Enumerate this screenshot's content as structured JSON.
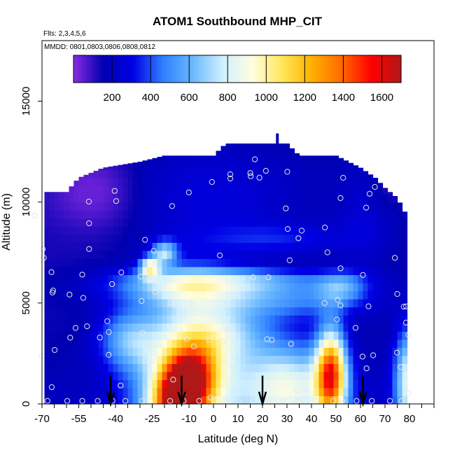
{
  "chart_data": {
    "type": "heatmap",
    "title": "ATOM1 Southbound MHP_CIT",
    "flights_label": "Flts: 2,3,4,5,6",
    "dates_label": "MMDD: 0801,0803,0806,0808,0812",
    "xlabel": "Latitude (deg N)",
    "ylabel": "Altitude (m)",
    "xlim": [
      -70,
      90
    ],
    "ylim": [
      0,
      18000
    ],
    "x_ticks": [
      "-70",
      "-55",
      "-40",
      "-25",
      "-10",
      "0",
      "10",
      "20",
      "30",
      "40",
      "50",
      "60",
      "70",
      "80"
    ],
    "y_ticks": [
      "0",
      "5000",
      "10000",
      "15000"
    ],
    "colorbar": {
      "vmin": 0,
      "vmax": 1700,
      "tick_labels": [
        "200",
        "400",
        "600",
        "800",
        "1000",
        "1200",
        "1400",
        "1600"
      ],
      "colors": [
        "#8a2be2",
        "#0000b0",
        "#0000e6",
        "#2f7fff",
        "#6ab8ff",
        "#cfefff",
        "#fffde0",
        "#ffe85a",
        "#ffb000",
        "#ff6a00",
        "#ff0000",
        "#b01818"
      ]
    },
    "arrows_lat": [
      -42,
      -13,
      20,
      61
    ],
    "field": {
      "lat_min": -69,
      "lat_max": 79,
      "alt_max": 13400
    }
  }
}
